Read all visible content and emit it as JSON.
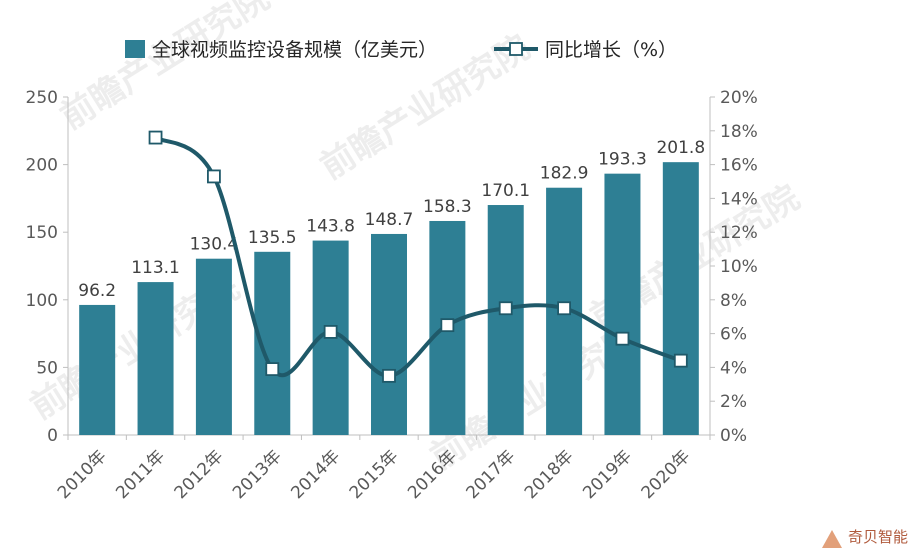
{
  "chart_data": {
    "type": "bar",
    "categories": [
      "2010年",
      "2011年",
      "2012年",
      "2013年",
      "2014年",
      "2015年",
      "2016年",
      "2017年",
      "2018年",
      "2019年",
      "2020年"
    ],
    "series": [
      {
        "name": "全球视频监控设备规模（亿美元）",
        "type": "bar",
        "axis": "left",
        "values": [
          96.2,
          113.1,
          130.4,
          135.5,
          143.8,
          148.7,
          158.3,
          170.1,
          182.9,
          193.3,
          201.8
        ],
        "labels": [
          "96.2",
          "113.1",
          "130.4",
          "135.5",
          "143.8",
          "148.7",
          "158.3",
          "170.1",
          "182.9",
          "193.3",
          "201.8"
        ]
      },
      {
        "name": "同比增长（%）",
        "type": "line",
        "axis": "right",
        "values": [
          null,
          17.6,
          15.3,
          3.9,
          6.1,
          3.5,
          6.5,
          7.5,
          7.5,
          5.7,
          4.4
        ]
      }
    ],
    "y_left": {
      "min": 0,
      "max": 250,
      "ticks": [
        "0",
        "50",
        "100",
        "150",
        "200",
        "250"
      ]
    },
    "y_right": {
      "min": 0,
      "max": 20,
      "ticks": [
        "0%",
        "2%",
        "4%",
        "6%",
        "8%",
        "10%",
        "12%",
        "14%",
        "16%",
        "18%",
        "20%"
      ]
    },
    "colors": {
      "bar": "#2e7f94",
      "line": "#1f5969",
      "marker_fill": "#ffffff"
    },
    "legend": {
      "bar_label": "全球视频监控设备规模（亿美元）",
      "line_label": "同比增长（%）",
      "position": "top"
    }
  },
  "watermark": {
    "text": "前瞻产业研究院"
  },
  "branding": {
    "text": "奇贝智能"
  }
}
